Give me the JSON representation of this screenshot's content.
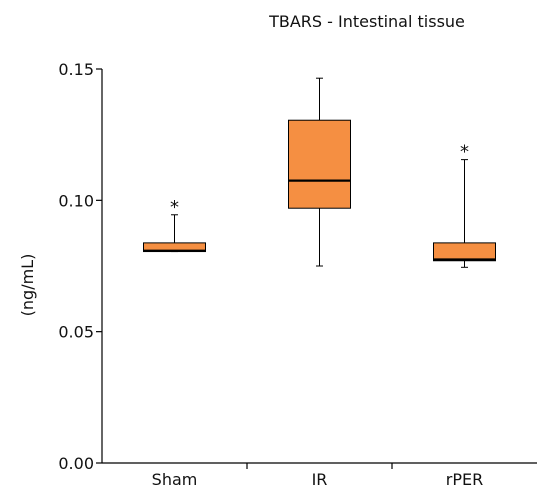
{
  "chart_data": {
    "type": "box",
    "title": "TBARS - Intestinal tissue",
    "xlabel": "",
    "ylabel": "(ng/mL)",
    "ylim": [
      0.0,
      0.15
    ],
    "yticks": [
      "0.00",
      "0.05",
      "0.10",
      "0.15"
    ],
    "categories": [
      "Sham",
      "IR",
      "rPER"
    ],
    "boxes": [
      {
        "name": "Sham",
        "min": 0.0805,
        "q1": 0.0805,
        "median": 0.0808,
        "q3": 0.0838,
        "max": 0.0945,
        "annotation": "*"
      },
      {
        "name": "IR",
        "min": 0.075,
        "q1": 0.097,
        "median": 0.1075,
        "q3": 0.1305,
        "max": 0.1465,
        "annotation": ""
      },
      {
        "name": "rPER",
        "min": 0.0745,
        "q1": 0.077,
        "median": 0.0775,
        "q3": 0.0838,
        "max": 0.1155,
        "annotation": "*"
      }
    ],
    "box_color": "#f58f42",
    "grid": false,
    "legend": "none"
  }
}
